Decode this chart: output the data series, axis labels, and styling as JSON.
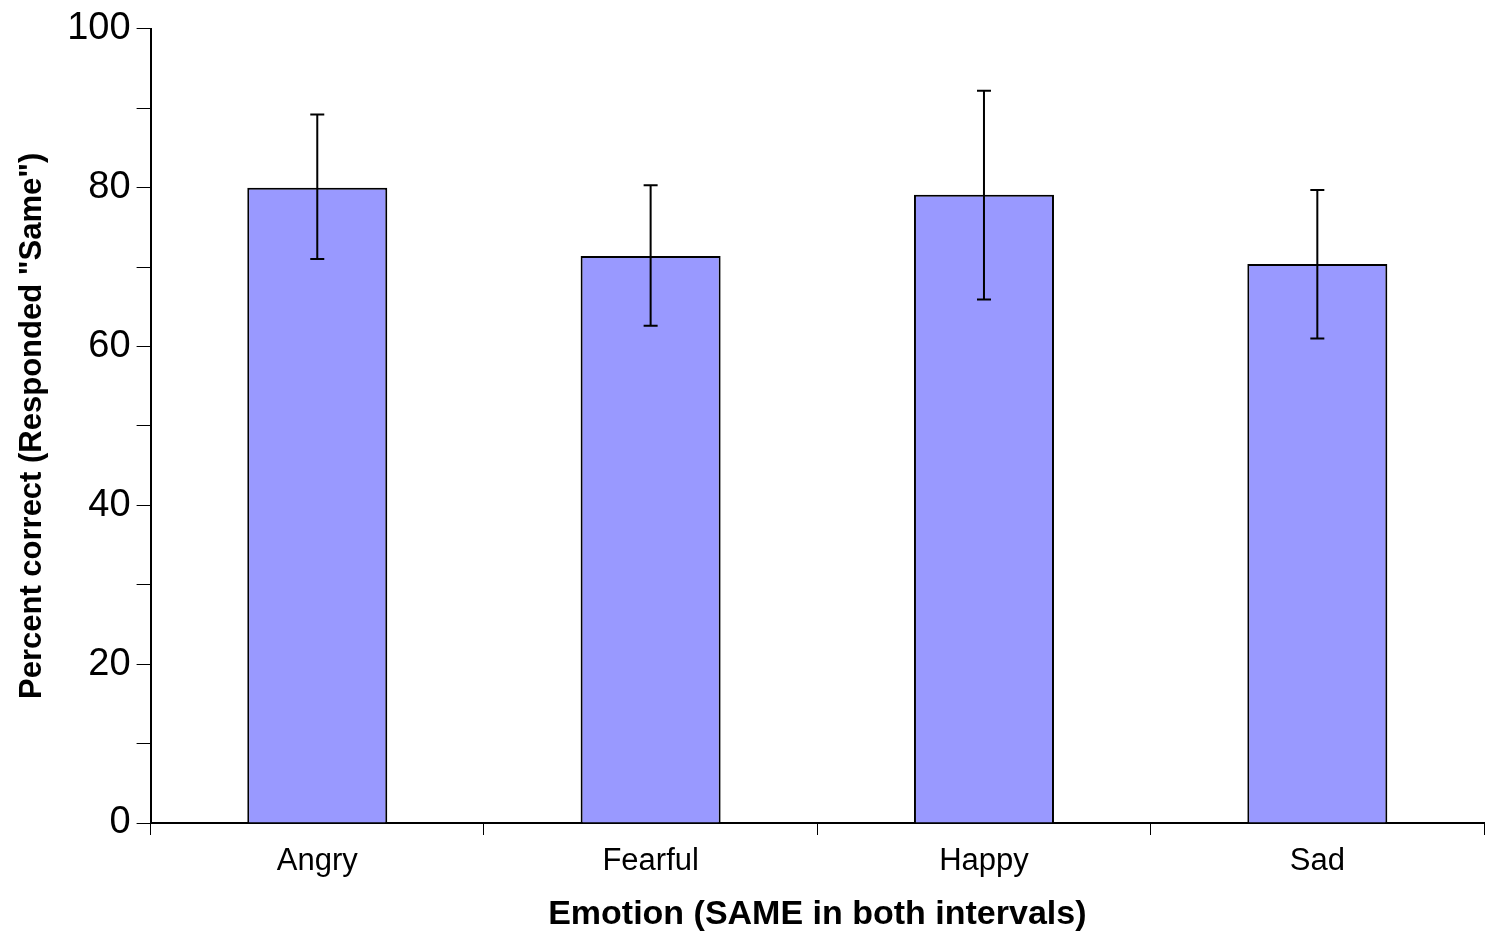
{
  "chart_data": {
    "type": "bar",
    "xlabel": "Emotion (SAME in both intervals)",
    "ylabel": "Percent correct (Responded \"Same\")",
    "categories": [
      "Angry",
      "Fearful",
      "Happy",
      "Sad"
    ],
    "values": [
      80.0,
      71.4,
      79.1,
      70.4
    ],
    "errors": [
      [
        71.0,
        89.2
      ],
      [
        62.6,
        80.3
      ],
      [
        65.9,
        92.2
      ],
      [
        61.0,
        79.7
      ]
    ],
    "color": "#9999ff",
    "ylim": [
      0,
      100
    ],
    "yticks": [
      0,
      {
        "value": 10,
        "label": null
      },
      20,
      {
        "value": 30,
        "label": null
      },
      40,
      {
        "value": 50,
        "label": null
      },
      60,
      {
        "value": 70,
        "label": null
      },
      80,
      {
        "value": 90,
        "label": null
      },
      100
    ],
    "grid": false,
    "legend": false
  }
}
